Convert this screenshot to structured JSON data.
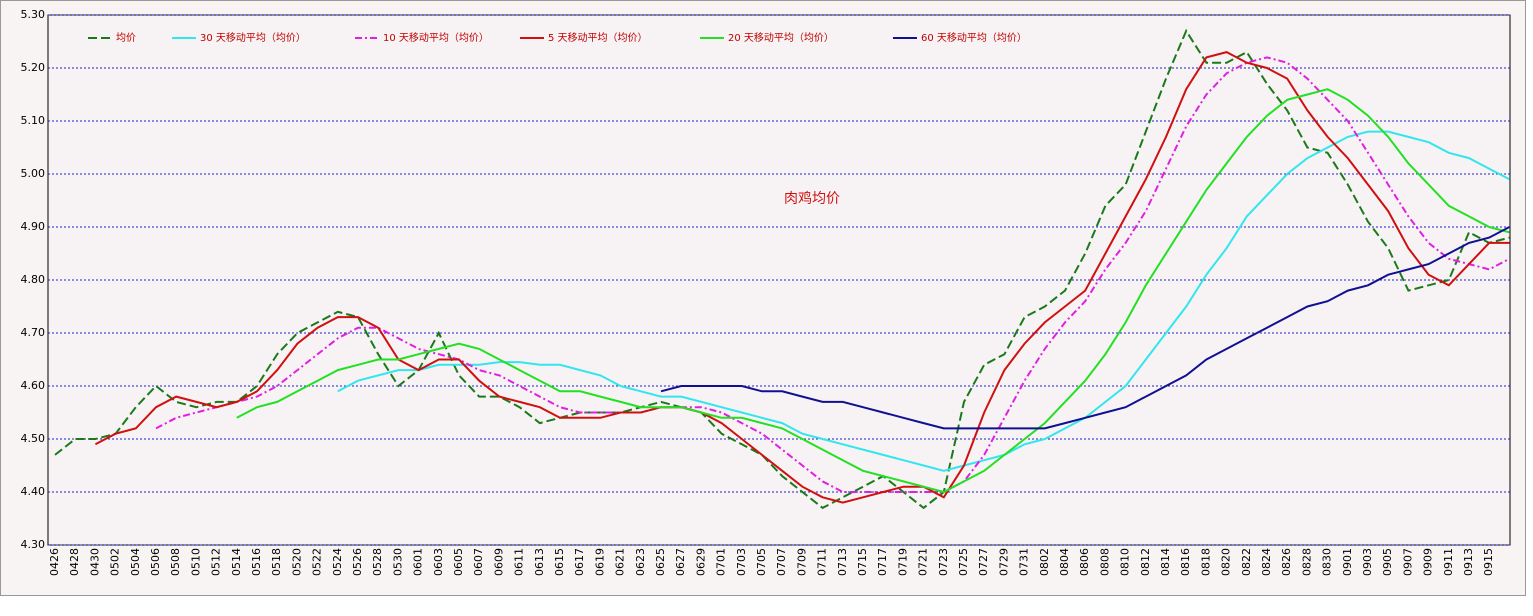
{
  "chart_data": {
    "type": "line",
    "annotation": "肉鸡均价",
    "categories": [
      "0426",
      "0428",
      "0430",
      "0502",
      "0504",
      "0506",
      "0508",
      "0510",
      "0512",
      "0514",
      "0516",
      "0518",
      "0520",
      "0522",
      "0524",
      "0526",
      "0528",
      "0530",
      "0601",
      "0603",
      "0605",
      "0607",
      "0609",
      "0611",
      "0613",
      "0615",
      "0617",
      "0619",
      "0621",
      "0623",
      "0625",
      "0627",
      "0629",
      "0701",
      "0703",
      "0705",
      "0707",
      "0709",
      "0711",
      "0713",
      "0715",
      "0717",
      "0719",
      "0721",
      "0723",
      "0725",
      "0727",
      "0729",
      "0731",
      "0802",
      "0804",
      "0806",
      "0808",
      "0810",
      "0812",
      "0814",
      "0816",
      "0818",
      "0820",
      "0822",
      "0824",
      "0826",
      "0828",
      "0830",
      "0901",
      "0903",
      "0905",
      "0907",
      "0909",
      "0911",
      "0913",
      "0915",
      null
    ],
    "ylim": [
      4.3,
      5.3
    ],
    "yticks": [
      {
        "value": 4.3,
        "label": "4.30"
      },
      {
        "value": 4.4,
        "label": "4.40"
      },
      {
        "value": 4.5,
        "label": "4.50"
      },
      {
        "value": 4.6,
        "label": "4.60"
      },
      {
        "value": 4.7,
        "label": "4.70"
      },
      {
        "value": 4.8,
        "label": "4.80"
      },
      {
        "value": 4.9,
        "label": "4.90"
      },
      {
        "value": 5.0,
        "label": "5.00"
      },
      {
        "value": 5.1,
        "label": "5.10"
      },
      {
        "value": 5.2,
        "label": "5.20"
      },
      {
        "value": 5.3,
        "label": "5.30"
      }
    ],
    "grid": true,
    "legend": "top",
    "series": [
      {
        "name": "均价",
        "color": "#1a7a1a",
        "dash": "dashed",
        "values": [
          4.47,
          4.5,
          4.5,
          4.51,
          4.56,
          4.6,
          4.57,
          4.56,
          4.57,
          4.57,
          4.6,
          4.66,
          4.7,
          4.72,
          4.74,
          4.73,
          4.66,
          4.6,
          4.63,
          4.7,
          4.62,
          4.58,
          4.58,
          4.56,
          4.53,
          4.54,
          4.55,
          4.55,
          4.55,
          4.56,
          4.57,
          4.56,
          4.55,
          4.51,
          4.49,
          4.47,
          4.43,
          4.4,
          4.37,
          4.39,
          4.41,
          4.43,
          4.4,
          4.37,
          4.4,
          4.57,
          4.64,
          4.66,
          4.73,
          4.75,
          4.78,
          4.85,
          4.94,
          4.98,
          5.08,
          5.18,
          5.27,
          5.21,
          5.21,
          5.23,
          5.17,
          5.12,
          5.05,
          5.04,
          4.98,
          4.91,
          4.86,
          4.78,
          4.79,
          4.8,
          4.89,
          4.87,
          4.88
        ]
      },
      {
        "name": "30 天移动平均（均价）",
        "color": "#33e5ee",
        "dash": "solid",
        "values": [
          null,
          null,
          null,
          null,
          null,
          null,
          null,
          null,
          null,
          null,
          null,
          null,
          null,
          null,
          4.59,
          4.61,
          4.62,
          4.63,
          4.63,
          4.64,
          4.64,
          4.64,
          4.645,
          4.645,
          4.64,
          4.64,
          4.63,
          4.62,
          4.6,
          4.59,
          4.58,
          4.58,
          4.57,
          4.56,
          4.55,
          4.54,
          4.53,
          4.51,
          4.5,
          4.49,
          4.48,
          4.47,
          4.46,
          4.45,
          4.44,
          4.45,
          4.46,
          4.47,
          4.49,
          4.5,
          4.52,
          4.54,
          4.57,
          4.6,
          4.65,
          4.7,
          4.75,
          4.81,
          4.86,
          4.92,
          4.96,
          5.0,
          5.03,
          5.05,
          5.07,
          5.08,
          5.08,
          5.07,
          5.06,
          5.04,
          5.03,
          5.01,
          4.99
        ]
      },
      {
        "name": "10 天移动平均（均价）",
        "color": "#e020e0",
        "dash": "dashdot",
        "values": [
          null,
          null,
          null,
          null,
          null,
          4.52,
          4.54,
          4.55,
          4.56,
          4.57,
          4.58,
          4.6,
          4.63,
          4.66,
          4.69,
          4.71,
          4.71,
          4.69,
          4.67,
          4.66,
          4.65,
          4.63,
          4.62,
          4.6,
          4.58,
          4.56,
          4.55,
          4.55,
          4.55,
          4.55,
          4.56,
          4.56,
          4.56,
          4.55,
          4.53,
          4.51,
          4.48,
          4.45,
          4.42,
          4.4,
          4.4,
          4.4,
          4.4,
          4.4,
          4.4,
          4.42,
          4.47,
          4.54,
          4.61,
          4.67,
          4.72,
          4.76,
          4.82,
          4.87,
          4.93,
          5.01,
          5.09,
          5.15,
          5.19,
          5.21,
          5.22,
          5.21,
          5.18,
          5.14,
          5.1,
          5.04,
          4.98,
          4.92,
          4.87,
          4.84,
          4.83,
          4.82,
          4.84
        ]
      },
      {
        "name": "5 天移动平均（均价）",
        "color": "#d01010",
        "dash": "solid",
        "values": [
          null,
          null,
          4.49,
          4.51,
          4.52,
          4.56,
          4.58,
          4.57,
          4.56,
          4.57,
          4.59,
          4.63,
          4.68,
          4.71,
          4.73,
          4.73,
          4.71,
          4.65,
          4.63,
          4.65,
          4.65,
          4.61,
          4.58,
          4.57,
          4.56,
          4.54,
          4.54,
          4.54,
          4.55,
          4.55,
          4.56,
          4.56,
          4.55,
          4.53,
          4.5,
          4.47,
          4.44,
          4.41,
          4.39,
          4.38,
          4.39,
          4.4,
          4.41,
          4.41,
          4.39,
          4.45,
          4.55,
          4.63,
          4.68,
          4.72,
          4.75,
          4.78,
          4.85,
          4.92,
          4.99,
          5.07,
          5.16,
          5.22,
          5.23,
          5.21,
          5.2,
          5.18,
          5.12,
          5.07,
          5.03,
          4.98,
          4.93,
          4.86,
          4.81,
          4.79,
          4.83,
          4.87,
          4.87
        ]
      },
      {
        "name": "20 天移动平均（均价）",
        "color": "#22e022",
        "dash": "solid",
        "values": [
          null,
          null,
          null,
          null,
          null,
          null,
          null,
          null,
          null,
          4.54,
          4.56,
          4.57,
          4.59,
          4.61,
          4.63,
          4.64,
          4.65,
          4.65,
          4.66,
          4.67,
          4.68,
          4.67,
          4.65,
          4.63,
          4.61,
          4.59,
          4.59,
          4.58,
          4.57,
          4.56,
          4.56,
          4.56,
          4.55,
          4.54,
          4.54,
          4.53,
          4.52,
          4.5,
          4.48,
          4.46,
          4.44,
          4.43,
          4.42,
          4.41,
          4.4,
          4.42,
          4.44,
          4.47,
          4.5,
          4.53,
          4.57,
          4.61,
          4.66,
          4.72,
          4.79,
          4.85,
          4.91,
          4.97,
          5.02,
          5.07,
          5.11,
          5.14,
          5.15,
          5.16,
          5.14,
          5.11,
          5.07,
          5.02,
          4.98,
          4.94,
          4.92,
          4.9,
          4.89
        ]
      },
      {
        "name": "60 天移动平均（均价）",
        "color": "#101090",
        "dash": "solid",
        "values": [
          null,
          null,
          null,
          null,
          null,
          null,
          null,
          null,
          null,
          null,
          null,
          null,
          null,
          null,
          null,
          null,
          null,
          null,
          null,
          null,
          null,
          null,
          null,
          null,
          null,
          null,
          null,
          null,
          null,
          null,
          4.59,
          4.6,
          4.6,
          4.6,
          4.6,
          4.59,
          4.59,
          4.58,
          4.57,
          4.57,
          4.56,
          4.55,
          4.54,
          4.53,
          4.52,
          4.52,
          4.52,
          4.52,
          4.52,
          4.52,
          4.53,
          4.54,
          4.55,
          4.56,
          4.58,
          4.6,
          4.62,
          4.65,
          4.67,
          4.69,
          4.71,
          4.73,
          4.75,
          4.76,
          4.78,
          4.79,
          4.81,
          4.82,
          4.83,
          4.85,
          4.87,
          4.88,
          4.9
        ]
      }
    ]
  }
}
